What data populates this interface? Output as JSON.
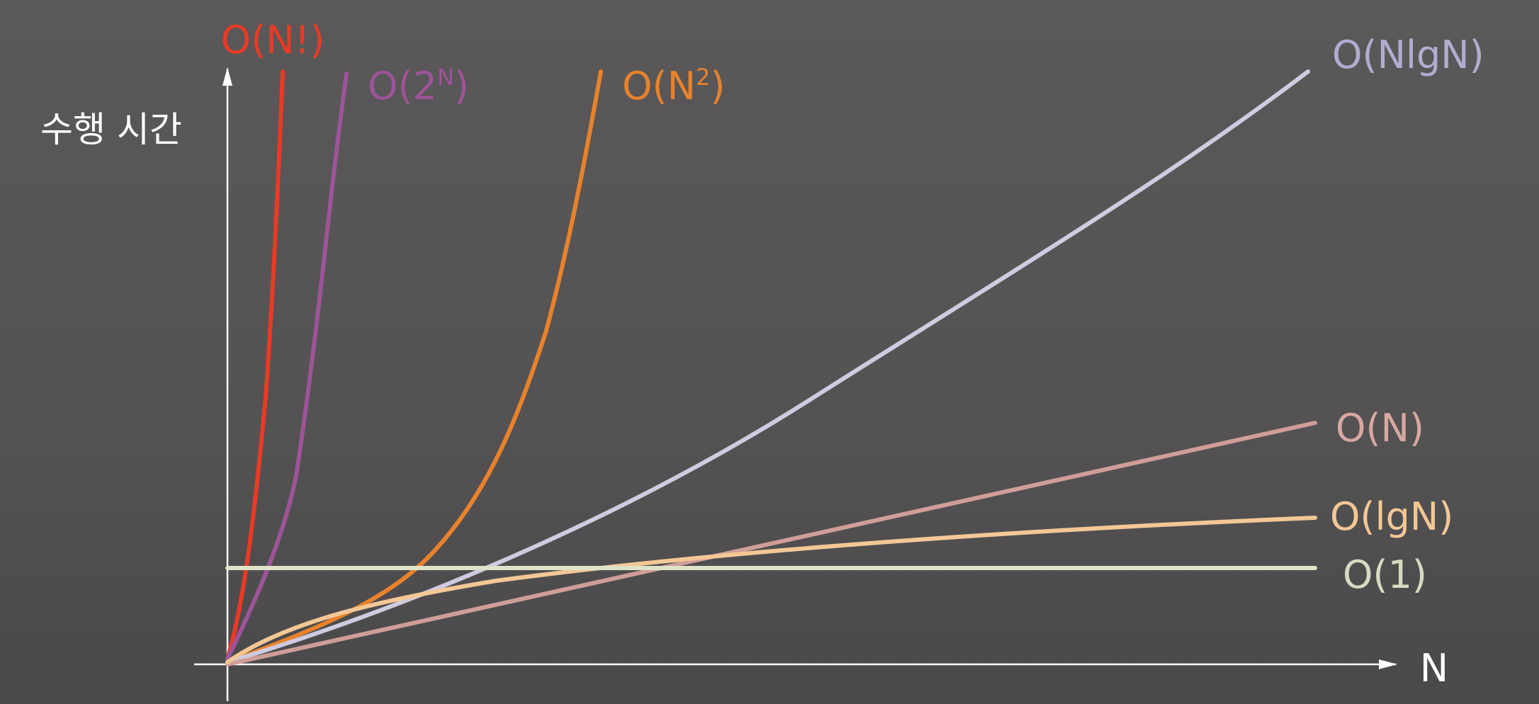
{
  "chart_data": {
    "type": "line",
    "title": "",
    "xlabel": "N",
    "ylabel": "수행 시간",
    "grid": false,
    "series": [
      {
        "name": "O(N!)",
        "label_base": "O(N!)",
        "color": "#ea3a26",
        "label_color": "#ea3a26"
      },
      {
        "name": "O(2^N)",
        "label_base": "O(2",
        "label_sup": "N",
        "label_close": ")",
        "color": "#9d5498",
        "label_color": "#9d5498"
      },
      {
        "name": "O(N^2)",
        "label_base": "O(N",
        "label_sup": "2",
        "label_close": ")",
        "color": "#e8822c",
        "label_color": "#e8822c"
      },
      {
        "name": "O(NlgN)",
        "label_base": "O(NlgN)",
        "color": "#cfcbe0",
        "label_color": "#b3acd0"
      },
      {
        "name": "O(N)",
        "label_base": "O(N)",
        "color": "#cf9e99",
        "label_color": "#d8a8a2"
      },
      {
        "name": "O(lgN)",
        "label_base": "O(lgN)",
        "color": "#f3c796",
        "label_color": "#f3c796"
      },
      {
        "name": "O(1)",
        "label_base": "O(1)",
        "color": "#dfe3c9",
        "label_color": "#d5dcc2"
      }
    ]
  }
}
